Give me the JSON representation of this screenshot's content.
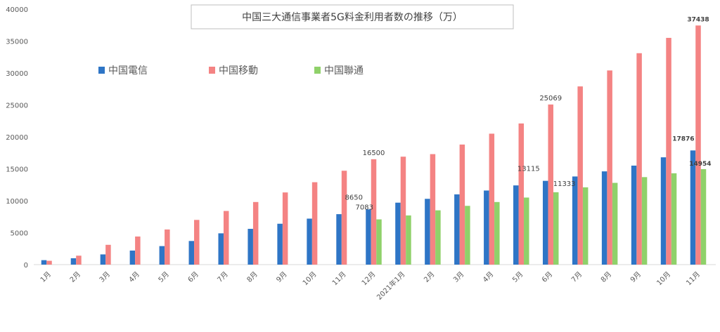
{
  "chart_data": {
    "type": "bar",
    "title": "中国三大通信事業者5G料金利用者数の推移（万）",
    "categories": [
      "1月",
      "2月",
      "3月",
      "4月",
      "5月",
      "6月",
      "7月",
      "8月",
      "9月",
      "10月",
      "11月",
      "12月",
      "2021年1月",
      "2月",
      "3月",
      "4月",
      "5月",
      "6月",
      "7月",
      "8月",
      "9月",
      "10月",
      "11月"
    ],
    "ylim": [
      0,
      40000
    ],
    "yticks": [
      0,
      5000,
      10000,
      15000,
      20000,
      25000,
      30000,
      35000,
      40000
    ],
    "grid": false,
    "legend_position": "top-left",
    "series": [
      {
        "name": "中国電信",
        "color": "#2e75c6",
        "values": [
          700,
          1000,
          1600,
          2200,
          2900,
          3700,
          4900,
          5600,
          6400,
          7200,
          7900,
          8650,
          9700,
          10300,
          11000,
          11600,
          12400,
          13115,
          13800,
          14600,
          15500,
          16800,
          17876
        ]
      },
      {
        "name": "中国移動",
        "color": "#f48383",
        "values": [
          600,
          1400,
          3100,
          4400,
          5500,
          7000,
          8400,
          9800,
          11300,
          12900,
          14700,
          16500,
          16900,
          17300,
          18800,
          20500,
          22100,
          25069,
          27900,
          30400,
          33100,
          35500,
          37438
        ]
      },
      {
        "name": "中国聯通",
        "color": "#8fd16a",
        "values": [
          null,
          null,
          null,
          null,
          null,
          null,
          null,
          null,
          null,
          null,
          null,
          7083,
          7700,
          8500,
          9200,
          9800,
          10500,
          11333,
          12100,
          12800,
          13700,
          14300,
          14954
        ]
      }
    ],
    "data_labels": [
      {
        "series": 0,
        "index": 11,
        "text": "8650"
      },
      {
        "series": 1,
        "index": 11,
        "text": "16500"
      },
      {
        "series": 2,
        "index": 11,
        "text": "7083"
      },
      {
        "series": 0,
        "index": 17,
        "text": "13115"
      },
      {
        "series": 1,
        "index": 17,
        "text": "25069"
      },
      {
        "series": 2,
        "index": 17,
        "text": "11333"
      },
      {
        "series": 0,
        "index": 22,
        "text": "17876"
      },
      {
        "series": 1,
        "index": 22,
        "text": "37438"
      },
      {
        "series": 2,
        "index": 22,
        "text": "14954"
      }
    ]
  }
}
